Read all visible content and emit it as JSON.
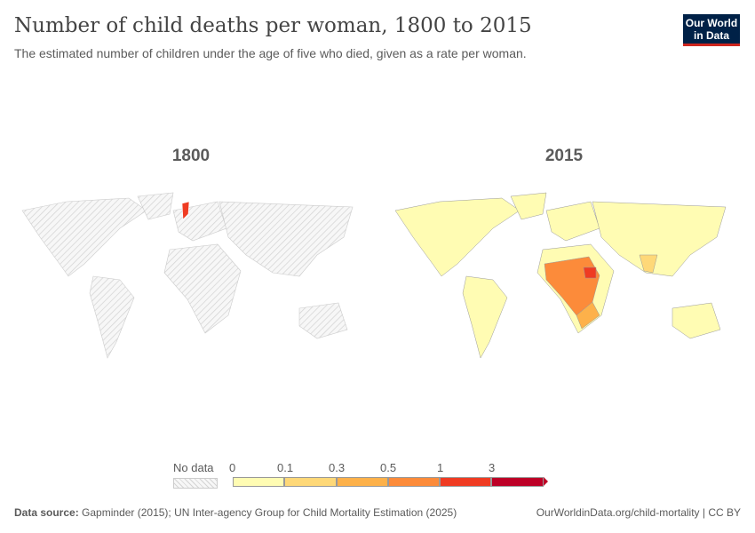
{
  "header": {
    "title": "Number of child deaths per woman, 1800 to 2015",
    "subtitle": "The estimated number of children under the age of five who died, given as a rate per woman.",
    "logo": "Our World in Data"
  },
  "maps": [
    {
      "year": "1800"
    },
    {
      "year": "2015"
    }
  ],
  "legend": {
    "no_data": "No data",
    "ticks": [
      "0",
      "0.1",
      "0.3",
      "0.5",
      "1",
      "3"
    ],
    "colors": [
      "#fffcb3",
      "#fed878",
      "#fdb14a",
      "#fc8b3a",
      "#ef3b22",
      "#bd0026"
    ],
    "no_data_color": "#e6e6e6"
  },
  "footer": {
    "source_label": "Data source:",
    "source": "Gapminder (2015); UN Inter-agency Group for Child Mortality Estimation (2025)",
    "url": "OurWorldinData.org/child-mortality | CC BY"
  }
}
